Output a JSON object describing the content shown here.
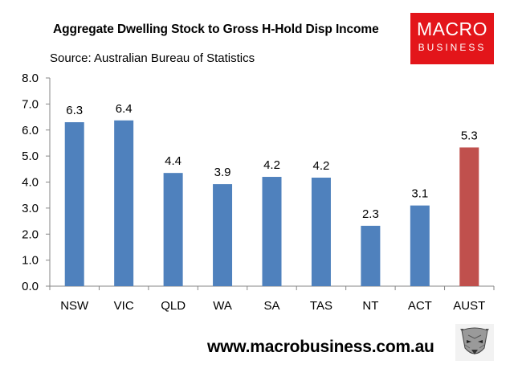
{
  "chart_data": {
    "type": "bar",
    "title": "Aggregate Dwelling Stock to Gross H-Hold Disp Income",
    "subtitle": "Source: Australian Bureau of Statistics",
    "categories": [
      "NSW",
      "VIC",
      "QLD",
      "WA",
      "SA",
      "TAS",
      "NT",
      "ACT",
      "AUST"
    ],
    "values": [
      6.3,
      6.4,
      4.4,
      3.9,
      4.2,
      4.2,
      2.3,
      3.1,
      5.3
    ],
    "plotted_values": [
      6.3,
      6.37,
      4.35,
      3.92,
      4.2,
      4.17,
      2.32,
      3.1,
      5.33
    ],
    "data_labels": [
      "6.3",
      "6.4",
      "4.4",
      "3.9",
      "4.2",
      "4.2",
      "2.3",
      "3.1",
      "5.3"
    ],
    "yticks": [
      "0.0",
      "1.0",
      "2.0",
      "3.0",
      "4.0",
      "5.0",
      "6.0",
      "7.0",
      "8.0"
    ],
    "ylim": [
      0,
      8
    ],
    "xlabel": "",
    "ylabel": "",
    "grid": false,
    "colors": {
      "default": "#4f81bd",
      "highlight": "#c0504d"
    },
    "highlight_category": "AUST"
  },
  "logo": {
    "line1": "MACRO",
    "line2": "BUSINESS"
  },
  "footer": {
    "url": "www.macrobusiness.com.au"
  },
  "icons": {
    "wolf": "wolf-icon"
  }
}
